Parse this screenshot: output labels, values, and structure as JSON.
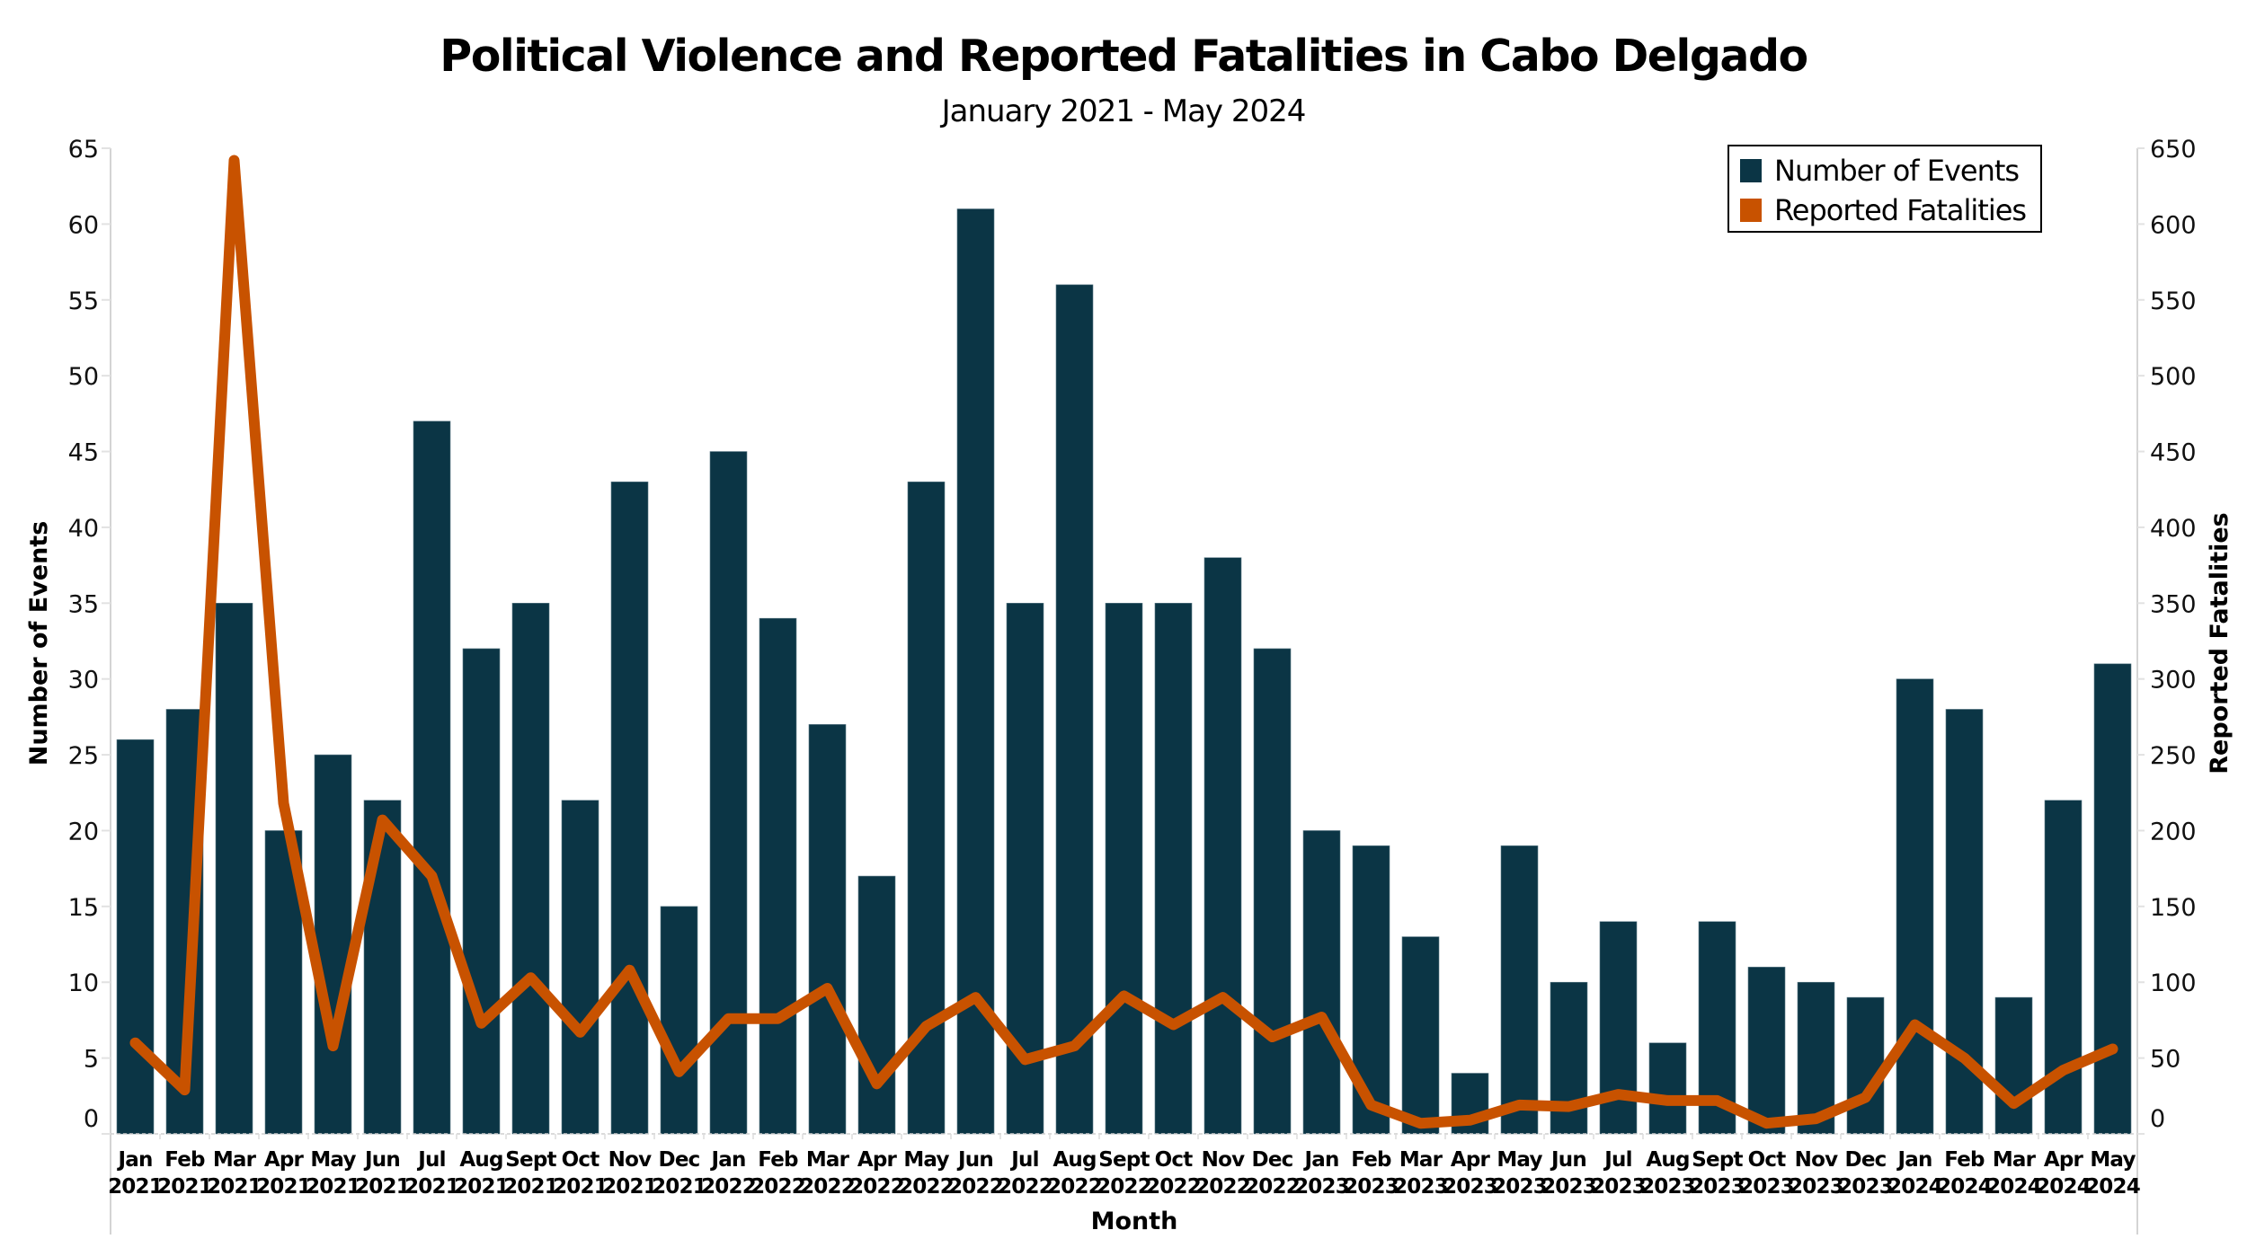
{
  "chart_data": {
    "type": "bar",
    "title": "Political Violence and Reported Fatalities in Cabo Delgado",
    "subtitle": "January 2021 - May 2024",
    "xlabel": "Month",
    "ylabel": "Number of Events",
    "y2label": "Reported Fatalities",
    "ylim": [
      0,
      65
    ],
    "y2lim": [
      0,
      650
    ],
    "yticks": [
      0,
      5,
      10,
      15,
      20,
      25,
      30,
      35,
      40,
      45,
      50,
      55,
      60,
      65
    ],
    "y2ticks": [
      0,
      50,
      100,
      150,
      200,
      250,
      300,
      350,
      400,
      450,
      500,
      550,
      600,
      650
    ],
    "grid": false,
    "legend_position": "top-right",
    "categories": [
      {
        "month": "Jan",
        "year": "2021"
      },
      {
        "month": "Feb",
        "year": "2021"
      },
      {
        "month": "Mar",
        "year": "2021"
      },
      {
        "month": "Apr",
        "year": "2021"
      },
      {
        "month": "May",
        "year": "2021"
      },
      {
        "month": "Jun",
        "year": "2021"
      },
      {
        "month": "Jul",
        "year": "2021"
      },
      {
        "month": "Aug",
        "year": "2021"
      },
      {
        "month": "Sept",
        "year": "2021"
      },
      {
        "month": "Oct",
        "year": "2021"
      },
      {
        "month": "Nov",
        "year": "2021"
      },
      {
        "month": "Dec",
        "year": "2021"
      },
      {
        "month": "Jan",
        "year": "2022"
      },
      {
        "month": "Feb",
        "year": "2022"
      },
      {
        "month": "Mar",
        "year": "2022"
      },
      {
        "month": "Apr",
        "year": "2022"
      },
      {
        "month": "May",
        "year": "2022"
      },
      {
        "month": "Jun",
        "year": "2022"
      },
      {
        "month": "Jul",
        "year": "2022"
      },
      {
        "month": "Aug",
        "year": "2022"
      },
      {
        "month": "Sept",
        "year": "2022"
      },
      {
        "month": "Oct",
        "year": "2022"
      },
      {
        "month": "Nov",
        "year": "2022"
      },
      {
        "month": "Dec",
        "year": "2022"
      },
      {
        "month": "Jan",
        "year": "2023"
      },
      {
        "month": "Feb",
        "year": "2023"
      },
      {
        "month": "Mar",
        "year": "2023"
      },
      {
        "month": "Apr",
        "year": "2023"
      },
      {
        "month": "May",
        "year": "2023"
      },
      {
        "month": "Jun",
        "year": "2023"
      },
      {
        "month": "Jul",
        "year": "2023"
      },
      {
        "month": "Aug",
        "year": "2023"
      },
      {
        "month": "Sept",
        "year": "2023"
      },
      {
        "month": "Oct",
        "year": "2023"
      },
      {
        "month": "Nov",
        "year": "2023"
      },
      {
        "month": "Dec",
        "year": "2023"
      },
      {
        "month": "Jan",
        "year": "2024"
      },
      {
        "month": "Feb",
        "year": "2024"
      },
      {
        "month": "Mar",
        "year": "2024"
      },
      {
        "month": "Apr",
        "year": "2024"
      },
      {
        "month": "May",
        "year": "2024"
      }
    ],
    "series": [
      {
        "name": "Number of Events",
        "type": "bar",
        "axis": "left",
        "color": "#0b3545",
        "values": [
          26,
          28,
          35,
          20,
          25,
          22,
          47,
          32,
          35,
          22,
          43,
          15,
          45,
          34,
          27,
          17,
          43,
          61,
          35,
          56,
          35,
          35,
          38,
          32,
          20,
          19,
          13,
          4,
          19,
          10,
          14,
          6,
          14,
          11,
          10,
          9,
          30,
          28,
          9,
          22,
          31
        ]
      },
      {
        "name": "Reported Fatalities",
        "type": "line",
        "axis": "right",
        "color": "#c85200",
        "values": [
          60,
          29,
          642,
          218,
          58,
          207,
          170,
          73,
          103,
          67,
          108,
          41,
          76,
          76,
          96,
          33,
          71,
          90,
          49,
          58,
          91,
          72,
          90,
          64,
          77,
          19,
          7,
          9,
          19,
          18,
          26,
          22,
          22,
          7,
          10,
          24,
          72,
          50,
          20,
          42,
          56
        ]
      }
    ]
  }
}
